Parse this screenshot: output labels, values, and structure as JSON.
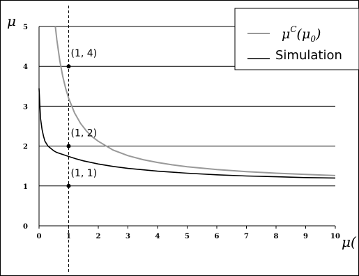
{
  "chart_data": {
    "type": "line",
    "title": "",
    "ylabel": "μ",
    "xlabel": "μ(",
    "xlim": [
      0,
      10
    ],
    "ylim": [
      0,
      5
    ],
    "x_ticks": [
      "0",
      "1",
      "2",
      "3",
      "4",
      "5",
      "6",
      "7",
      "8",
      "9",
      "10"
    ],
    "y_ticks": [
      "0",
      "1",
      "2",
      "3",
      "4",
      "5"
    ],
    "grid": "horizontal",
    "legend_position": "top-right",
    "vertical_reference_x": 1,
    "series": [
      {
        "name": "μ^C(μ_0)",
        "legend_main": "μ",
        "legend_sup": "C",
        "legend_rest": "(μ",
        "legend_sub": "0",
        "legend_close": ")",
        "color": "#999999",
        "x": [
          0.55,
          0.6,
          0.7,
          0.8,
          0.9,
          1.0,
          1.2,
          1.4,
          1.6,
          1.8,
          2.0,
          2.5,
          3.0,
          3.5,
          4.0,
          4.5,
          5.0,
          6.0,
          7.0,
          8.0,
          9.0,
          10.0
        ],
        "y": [
          5.0,
          4.67,
          4.14,
          3.75,
          3.44,
          3.2,
          2.83,
          2.57,
          2.38,
          2.23,
          2.12,
          1.9,
          1.76,
          1.66,
          1.59,
          1.53,
          1.48,
          1.41,
          1.36,
          1.32,
          1.29,
          1.26
        ]
      },
      {
        "name": "Simulation",
        "color": "#000000",
        "x": [
          0.0,
          0.05,
          0.1,
          0.15,
          0.2,
          0.3,
          0.4,
          0.5,
          0.6,
          0.8,
          1.0,
          1.25,
          1.5,
          2.0,
          2.5,
          3.0,
          4.0,
          5.0,
          6.0,
          7.0,
          8.0,
          9.0,
          10.0
        ],
        "y": [
          3.45,
          2.7,
          2.42,
          2.25,
          2.12,
          2.0,
          1.94,
          1.88,
          1.84,
          1.79,
          1.74,
          1.68,
          1.63,
          1.55,
          1.49,
          1.44,
          1.37,
          1.32,
          1.28,
          1.25,
          1.23,
          1.21,
          1.2
        ]
      }
    ],
    "points": [
      {
        "label": "(1, 4)",
        "x": 1,
        "y": 4
      },
      {
        "label": "(1, 2)",
        "x": 1,
        "y": 2
      },
      {
        "label": "(1, 1)",
        "x": 1,
        "y": 1
      }
    ]
  }
}
